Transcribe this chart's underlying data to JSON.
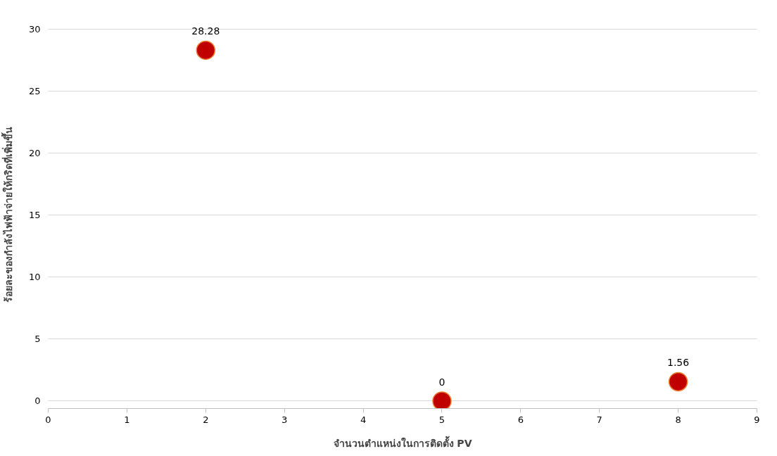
{
  "chart_data": {
    "type": "scatter",
    "xlabel": "จำนวนตำแหน่งในการติดตั้ง PV",
    "ylabel": "ร้อยละของกำลังไฟฟ้าจ่ายให้กริดที่เพิ่มขึ้น",
    "x": [
      2,
      5,
      8
    ],
    "series": [
      {
        "color": "#c00000",
        "values": [
          28.28,
          0,
          1.56
        ]
      }
    ],
    "xlim": [
      0,
      9
    ],
    "xticks": [
      0,
      1,
      2,
      3,
      4,
      5,
      6,
      7,
      8,
      9
    ],
    "ylim": [
      0,
      30
    ],
    "yticks": [
      0,
      5,
      10,
      15,
      20,
      25,
      30
    ],
    "grid": "y",
    "marker": "circle",
    "data_labels": true
  }
}
